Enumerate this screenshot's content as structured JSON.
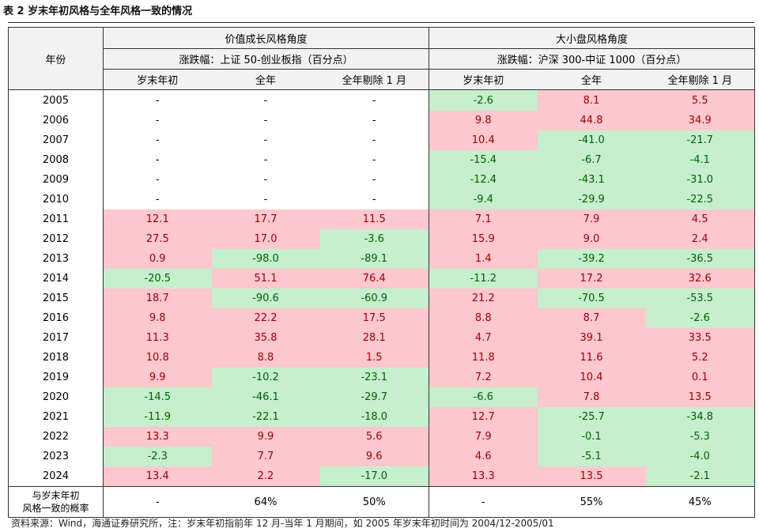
{
  "title": "表 2  岁末年初风格与全年风格一致的情况",
  "headers": {
    "year_col": "年份",
    "group1": "价值成长风格角度",
    "group1_sub": "涨跌幅：上证 50-创业板指（百分点）",
    "group2": "大小盘风格角度",
    "group2_sub": "涨跌幅：沪深 300-中证 1000（百分点）",
    "cols": [
      "岁末年初",
      "全年",
      "全年剔除 1 月",
      "岁末年初",
      "全年",
      "全年剔除 1 月"
    ]
  },
  "rows": [
    {
      "year": "2005",
      "v": [
        "-",
        "-",
        "-",
        "-2.6",
        "8.1",
        "5.5"
      ]
    },
    {
      "year": "2006",
      "v": [
        "-",
        "-",
        "-",
        "9.8",
        "44.8",
        "34.9"
      ]
    },
    {
      "year": "2007",
      "v": [
        "-",
        "-",
        "-",
        "10.4",
        "-41.0",
        "-21.7"
      ]
    },
    {
      "year": "2008",
      "v": [
        "-",
        "-",
        "-",
        "-15.4",
        "-6.7",
        "-4.1"
      ]
    },
    {
      "year": "2009",
      "v": [
        "-",
        "-",
        "-",
        "-12.4",
        "-43.1",
        "-31.0"
      ]
    },
    {
      "year": "2010",
      "v": [
        "-",
        "-",
        "-",
        "-9.4",
        "-29.9",
        "-22.5"
      ]
    },
    {
      "year": "2011",
      "v": [
        "12.1",
        "17.7",
        "11.5",
        "7.1",
        "7.9",
        "4.5"
      ]
    },
    {
      "year": "2012",
      "v": [
        "27.5",
        "17.0",
        "-3.6",
        "15.9",
        "9.0",
        "2.4"
      ]
    },
    {
      "year": "2013",
      "v": [
        "0.9",
        "-98.0",
        "-89.1",
        "1.4",
        "-39.2",
        "-36.5"
      ]
    },
    {
      "year": "2014",
      "v": [
        "-20.5",
        "51.1",
        "76.4",
        "-11.2",
        "17.2",
        "32.6"
      ]
    },
    {
      "year": "2015",
      "v": [
        "18.7",
        "-90.6",
        "-60.9",
        "21.2",
        "-70.5",
        "-53.5"
      ]
    },
    {
      "year": "2016",
      "v": [
        "9.8",
        "22.2",
        "17.5",
        "8.8",
        "8.7",
        "-2.6"
      ]
    },
    {
      "year": "2017",
      "v": [
        "11.3",
        "35.8",
        "28.1",
        "4.7",
        "39.1",
        "33.5"
      ]
    },
    {
      "year": "2018",
      "v": [
        "10.8",
        "8.8",
        "1.5",
        "11.8",
        "11.6",
        "5.2"
      ]
    },
    {
      "year": "2019",
      "v": [
        "9.9",
        "-10.2",
        "-23.1",
        "7.2",
        "10.4",
        "0.1"
      ]
    },
    {
      "year": "2020",
      "v": [
        "-14.5",
        "-46.1",
        "-29.7",
        "-6.6",
        "7.8",
        "13.5"
      ]
    },
    {
      "year": "2021",
      "v": [
        "-11.9",
        "-22.1",
        "-18.0",
        "12.7",
        "-25.7",
        "-34.8"
      ]
    },
    {
      "year": "2022",
      "v": [
        "13.3",
        "9.9",
        "5.6",
        "7.9",
        "-0.1",
        "-5.3"
      ]
    },
    {
      "year": "2023",
      "v": [
        "-2.3",
        "7.7",
        "9.6",
        "4.6",
        "-5.1",
        "-4.0"
      ]
    },
    {
      "year": "2024",
      "v": [
        "13.4",
        "2.2",
        "-17.0",
        "13.3",
        "13.5",
        "-2.1"
      ]
    }
  ],
  "summary": {
    "label_line1": "与岁末年初",
    "label_line2": "风格一致的概率",
    "values": [
      "-",
      "64%",
      "50%",
      "-",
      "55%",
      "45%"
    ]
  },
  "colors": {
    "positive_fill": "#ffc7ce",
    "positive_text": "#9c0006",
    "negative_fill": "#c6efce",
    "negative_text": "#006100",
    "header_fill": "#f2f2f2"
  },
  "footnote": "资料来源：Wind，海通证券研究所，注：岁末年初指前年 12 月-当年 1 月期间，如 2005 年岁末年初时间为 2004/12-2005/01"
}
